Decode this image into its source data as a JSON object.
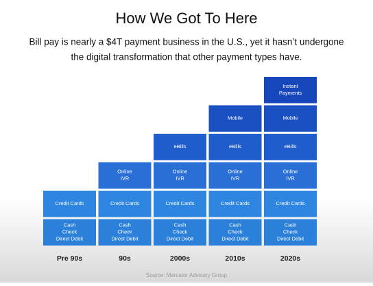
{
  "header": {
    "title": "How We Got To Here",
    "subtitle_lines": [
      "Bill pay is nearly a $4T payment business in the U.S., yet it hasn’t undergone",
      "the digital transformation that other payment types have."
    ]
  },
  "columns": [
    {
      "label": "Pre 90s",
      "blocks": [
        [
          "Cash",
          "Check",
          "Direct Debit"
        ],
        [
          "Credit Cards"
        ]
      ]
    },
    {
      "label": "90s",
      "blocks": [
        [
          "Cash",
          "Check",
          "Direct Debit"
        ],
        [
          "Credit Cards"
        ],
        [
          "Online",
          "IVR"
        ]
      ]
    },
    {
      "label": "2000s",
      "blocks": [
        [
          "Cash",
          "Check",
          "Direct Debit"
        ],
        [
          "Credit Cards"
        ],
        [
          "Online",
          "IVR"
        ],
        [
          "eBills"
        ]
      ]
    },
    {
      "label": "2010s",
      "blocks": [
        [
          "Cash",
          "Check",
          "Direct Debit"
        ],
        [
          "Credit Cards"
        ],
        [
          "Online",
          "IVR"
        ],
        [
          "eBills"
        ],
        [
          "Mobile"
        ]
      ]
    },
    {
      "label": "2020s",
      "blocks": [
        [
          "Cash",
          "Check",
          "Direct Debit"
        ],
        [
          "Credit Cards"
        ],
        [
          "Online",
          "IVR"
        ],
        [
          "eBills"
        ],
        [
          "Mobile"
        ],
        [
          "Instant",
          "Payments"
        ]
      ]
    }
  ],
  "source": "Source: Mercator Advisory Group"
}
